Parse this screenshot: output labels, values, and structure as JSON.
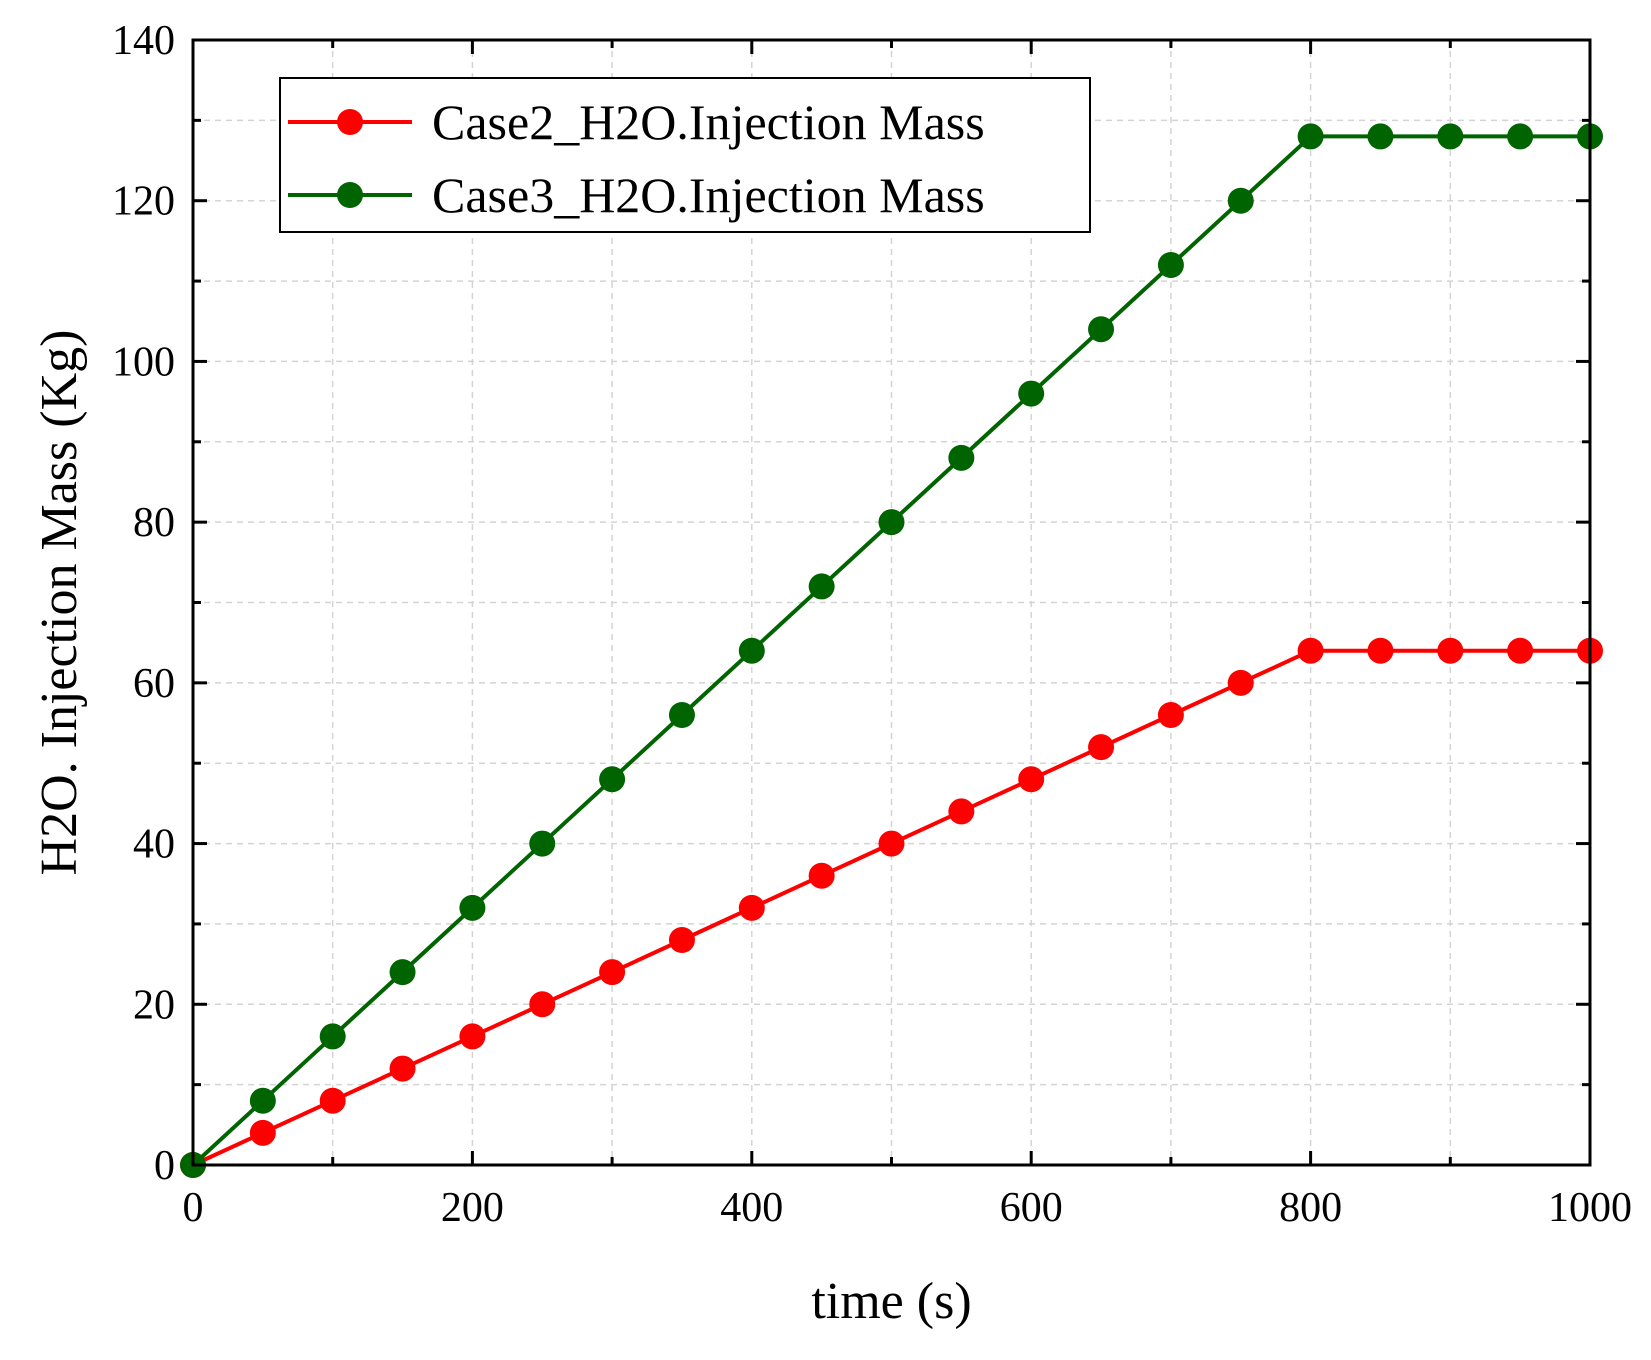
{
  "chart_data": {
    "type": "line",
    "xlabel": "time (s)",
    "ylabel": "H2O. Injection Mass (Kg)",
    "xlim": [
      0,
      1000
    ],
    "ylim": [
      0,
      140
    ],
    "xticks": [
      0,
      200,
      400,
      600,
      800,
      1000
    ],
    "yticks": [
      0,
      20,
      40,
      60,
      80,
      100,
      120,
      140
    ],
    "grid": true,
    "legend_position": "top-left",
    "series": [
      {
        "name": "Case2_H2O.Injection Mass",
        "color": "#ff0000",
        "x": [
          0,
          50,
          100,
          150,
          200,
          250,
          300,
          350,
          400,
          450,
          500,
          550,
          600,
          650,
          700,
          750,
          800,
          850,
          900,
          950,
          1000
        ],
        "y": [
          0,
          4,
          8,
          12,
          16,
          20,
          24,
          28,
          32,
          36,
          40,
          44,
          48,
          52,
          56,
          60,
          64,
          64,
          64,
          64,
          64
        ]
      },
      {
        "name": "Case3_H2O.Injection Mass",
        "color": "#006400",
        "x": [
          0,
          50,
          100,
          150,
          200,
          250,
          300,
          350,
          400,
          450,
          500,
          550,
          600,
          650,
          700,
          750,
          800,
          850,
          900,
          950,
          1000
        ],
        "y": [
          0,
          8,
          16,
          24,
          32,
          40,
          48,
          56,
          64,
          72,
          80,
          88,
          96,
          104,
          112,
          120,
          128,
          128,
          128,
          128,
          128
        ]
      }
    ]
  }
}
